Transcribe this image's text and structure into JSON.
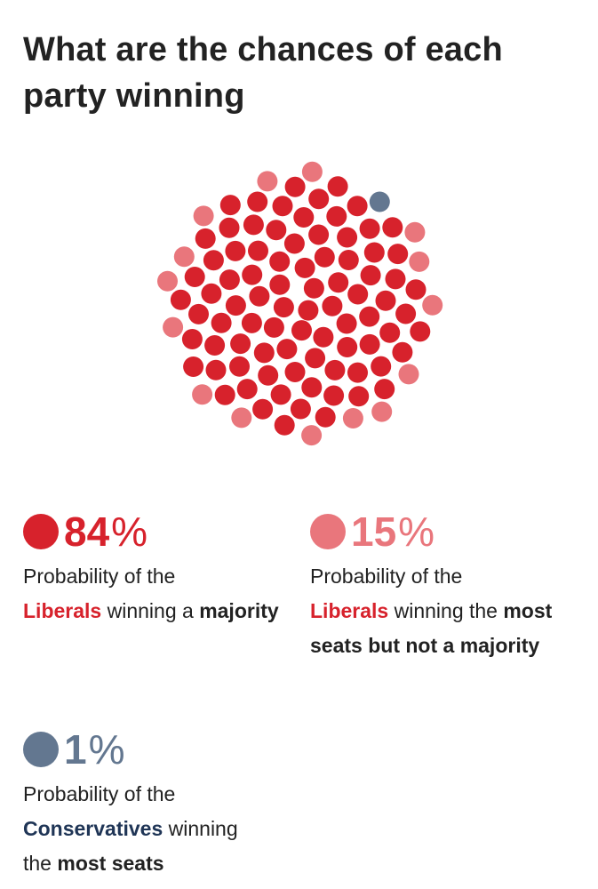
{
  "title": "What are the chances of each party winning",
  "colors": {
    "liberal_majority": "#d7222c",
    "liberal_plurality": "#e9767c",
    "conservative_plurality": "#637790",
    "liberal_text": "#d7222c",
    "conservative_text": "#1f3556"
  },
  "chart_data": {
    "type": "scatter",
    "title": "What are the chances of each party winning",
    "total_dots": 100,
    "series": [
      {
        "name": "Liberals winning a majority",
        "value": 84,
        "unit": "%"
      },
      {
        "name": "Liberals winning the most seats but not a majority",
        "value": 15,
        "unit": "%"
      },
      {
        "name": "Conservatives winning the most seats",
        "value": 1,
        "unit": "%"
      }
    ]
  },
  "stats": {
    "majority": {
      "number": "84",
      "sign": "%",
      "line1": "Probability of the",
      "party": "Liberals",
      "rest": " winning a",
      "emphasis": "majority",
      "tail": ""
    },
    "plurality": {
      "number": "15",
      "sign": "%",
      "line1": "Probability of the",
      "party": "Liberals",
      "rest": " winning the",
      "emphasis": "most seats but not a majority",
      "tail": ""
    },
    "conservative": {
      "number": "1",
      "sign": "%",
      "line1": "Probability of the",
      "party": "Conservatives",
      "rest": " winning",
      "pre_emphasis": "the ",
      "emphasis": "most seats"
    }
  }
}
